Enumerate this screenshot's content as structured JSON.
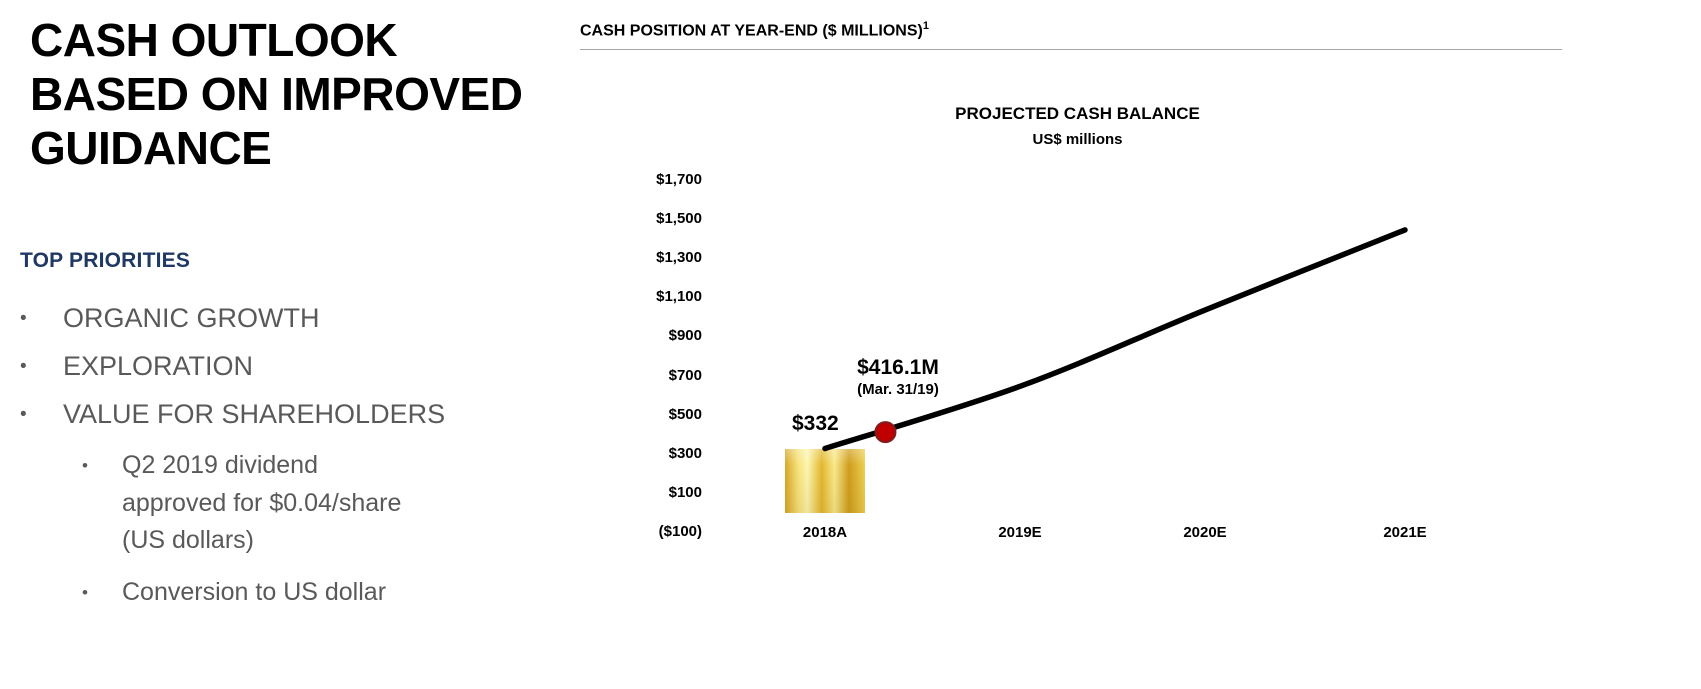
{
  "slide": {
    "title": "CASH OUTLOOK\nBASED ON IMPROVED\nGUIDANCE",
    "priorities_heading": "TOP PRIORITIES",
    "bullets": [
      {
        "label": "ORGANIC GROWTH"
      },
      {
        "label": "EXPLORATION"
      },
      {
        "label": "VALUE FOR SHAREHOLDERS",
        "sub": [
          "Q2 2019 dividend\napproved for $0.04/share\n(US dollars)",
          "Conversion to US dollar"
        ]
      }
    ]
  },
  "chart_header": "CASH POSITION AT YEAR-END ($ MILLIONS)",
  "chart_header_note": "1",
  "chart_data": {
    "type": "line",
    "title": "PROJECTED CASH BALANCE",
    "subtitle": "US$ millions",
    "categories": [
      "2018A",
      "2019E",
      "2020E",
      "2021E"
    ],
    "series": [
      {
        "name": "Projected cash balance",
        "values": [
          332,
          650,
          1040,
          1450
        ]
      }
    ],
    "bar": {
      "category": "2018A",
      "value": 332,
      "style": "gold-bar"
    },
    "marker": {
      "label": "$416.1M",
      "sublabel": "(Mar. 31/19)",
      "value": 416.1,
      "t": 0.31,
      "color": "#C00000",
      "outline": "#7F1D1D"
    },
    "point_label": {
      "category": "2018A",
      "text": "$332"
    },
    "xlabel": "",
    "ylabel": "",
    "ylim": [
      -100,
      1700
    ],
    "ytick_step": 200,
    "ytick_labels": [
      "$1,700",
      "$1,500",
      "$1,300",
      "$1,100",
      "$900",
      "$700",
      "$500",
      "$300",
      "$100",
      "($100)"
    ],
    "grid": false,
    "legend": false,
    "line_color": "#000000"
  }
}
